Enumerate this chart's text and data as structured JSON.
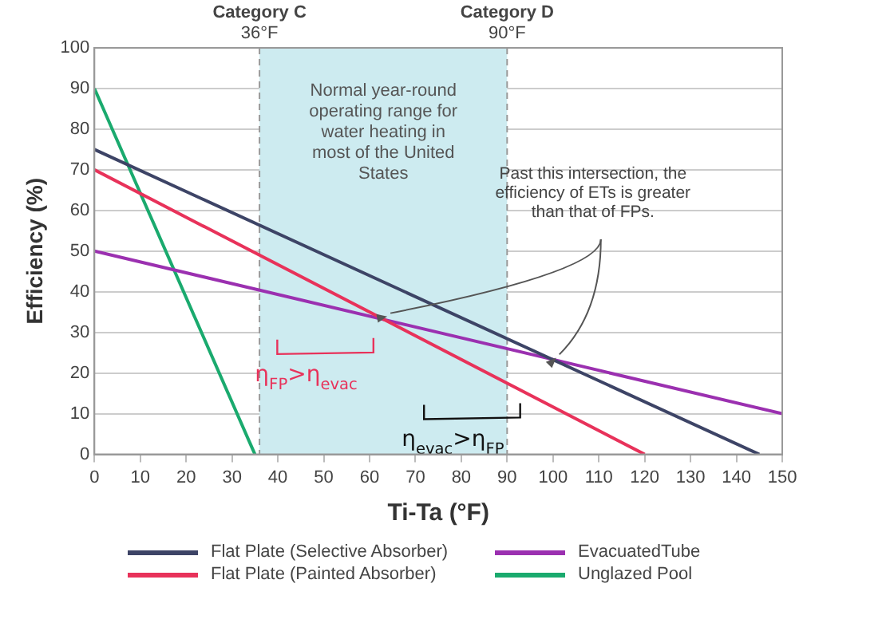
{
  "chart_data": {
    "type": "line",
    "xlabel": "Ti-Ta (°F)",
    "ylabel": "Efficiency (%)",
    "xlim": [
      0,
      150
    ],
    "xticks": [
      0,
      10,
      20,
      30,
      40,
      50,
      60,
      70,
      80,
      90,
      100,
      110,
      120,
      130,
      140,
      150
    ],
    "ylim": [
      0,
      100
    ],
    "yticks": [
      0,
      10,
      20,
      30,
      40,
      50,
      60,
      70,
      80,
      90,
      100
    ],
    "grid": "y",
    "legend": "bottom",
    "marker": "none",
    "line_style": "solid",
    "series": [
      {
        "name": "Flat Plate (Selective Absorber)",
        "color": "#3d4466",
        "x": [
          0,
          145
        ],
        "values": [
          75,
          0
        ]
      },
      {
        "name": "Flat Plate (Painted Absorber)",
        "color": "#e8325a",
        "x": [
          0,
          120
        ],
        "values": [
          70,
          0
        ]
      },
      {
        "name": "EvacuatedTube",
        "color": "#9b30b0",
        "x": [
          0,
          150
        ],
        "values": [
          50,
          10
        ]
      },
      {
        "name": "Unglazed Pool",
        "color": "#1aaa6e",
        "x": [
          0,
          35
        ],
        "values": [
          90,
          0
        ]
      }
    ],
    "bands": [
      {
        "axis": "x",
        "from": 36,
        "to": 90,
        "color": "#cdebf0",
        "label": "Normal year-round operating range for water heating in most of the United States"
      }
    ],
    "ref_lines": [
      {
        "axis": "x",
        "value": 36,
        "label": "Category C\n36°F",
        "line_style": "dashed"
      },
      {
        "axis": "x",
        "value": 90,
        "label": "Category D\n90°F",
        "line_style": "dashed"
      }
    ],
    "annotations": [
      {
        "text": "Past this intersection, the efficiency of ETs is greater than that of FPs.",
        "x": 100,
        "y": 23
      },
      {
        "text": "η$_{FP}$>η$_{evac}$",
        "x": 35,
        "y": 18
      },
      {
        "text": "η$_{evac}$>η$_{FP}$",
        "x": 67,
        "y": 2
      }
    ]
  }
}
